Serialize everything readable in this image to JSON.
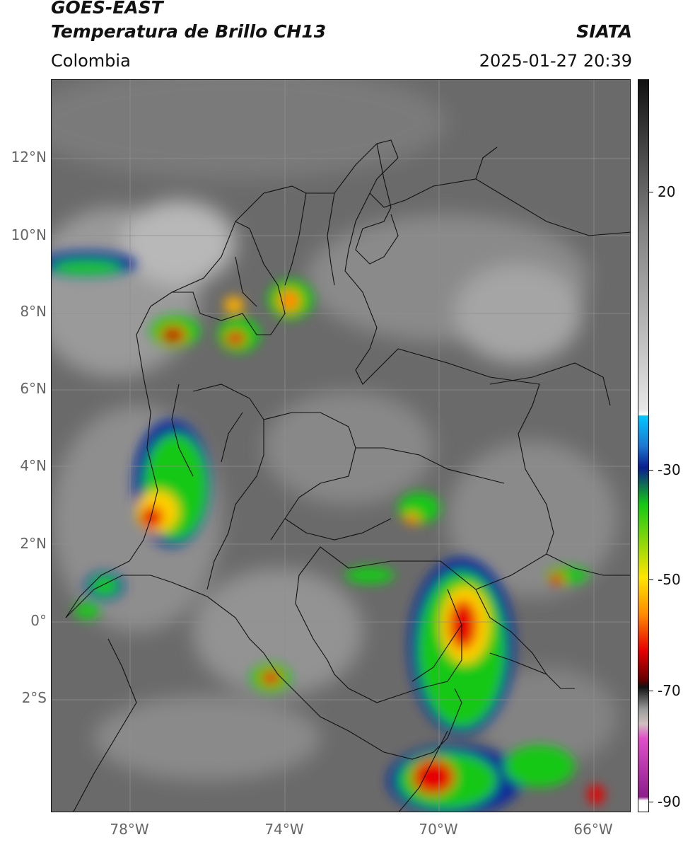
{
  "header": {
    "satellite": "GOES-EAST",
    "product": "Temperatura de Brillo CH13",
    "region": "Colombia",
    "agency": "SIATA",
    "datetime": "2025-01-27 20:39"
  },
  "map": {
    "lat_labels": [
      "12°N",
      "10°N",
      "8°N",
      "6°N",
      "4°N",
      "2°N",
      "0°",
      "2°S"
    ],
    "lon_labels": [
      "78°W",
      "74°W",
      "70°W",
      "66°W"
    ],
    "lat_range": [
      -4.8,
      14.0
    ],
    "lon_range": [
      -80.0,
      -65.0
    ]
  },
  "colorbar": {
    "ticks": [
      "20",
      "-30",
      "-50",
      "-70",
      "-90"
    ],
    "tick_values": [
      20,
      -30,
      -50,
      -70,
      -90
    ],
    "range": [
      -92,
      42
    ],
    "colors": {
      "black": "#111111",
      "mid_gray": "#808080",
      "light_gray": "#e6e6e6",
      "cyan": "#00c8ff",
      "navy": "#0a1e8c",
      "green": "#14c814",
      "yellow": "#ffe600",
      "orange": "#ff8c00",
      "red": "#e60000",
      "dark_red": "#640000",
      "magenta": "#e050c8",
      "purple": "#8c1e8c"
    }
  }
}
